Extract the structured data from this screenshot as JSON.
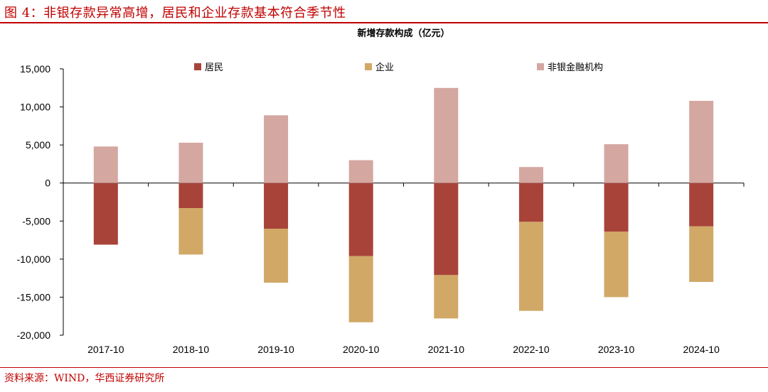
{
  "figure_title": "图 4：非银存款异常高增，居民和企业存款基本符合季节性",
  "source": "资料来源：WIND，华西证券研究所",
  "colors": {
    "brand": "#c00000",
    "series": [
      "#a8433a",
      "#d1a866",
      "#d4a7a1"
    ]
  },
  "chart_data": {
    "type": "bar",
    "stacked": true,
    "title": "新增存款构成（亿元）",
    "categories": [
      "2017-10",
      "2018-10",
      "2019-10",
      "2020-10",
      "2021-10",
      "2022-10",
      "2023-10",
      "2024-10"
    ],
    "series": [
      {
        "name": "居民",
        "values": [
          -8100,
          -3300,
          -6000,
          -9600,
          -12100,
          -5100,
          -6400,
          -5700
        ]
      },
      {
        "name": "企业",
        "values": [
          0,
          -6100,
          -7100,
          -8700,
          -5700,
          -11700,
          -8600,
          -7300
        ]
      },
      {
        "name": "非银金融机构",
        "values": [
          4800,
          5300,
          8900,
          3000,
          12500,
          2100,
          5100,
          10800
        ]
      }
    ],
    "ylim": [
      -20000,
      15000
    ],
    "yticks": [
      15000,
      10000,
      5000,
      0,
      -5000,
      -10000,
      -15000,
      -20000
    ],
    "ytick_labels": [
      "15,000",
      "10,000",
      "5,000",
      "0",
      "-5,000",
      "-10,000",
      "-15,000",
      "-20,000"
    ],
    "legend_position": "top",
    "grid": false
  }
}
